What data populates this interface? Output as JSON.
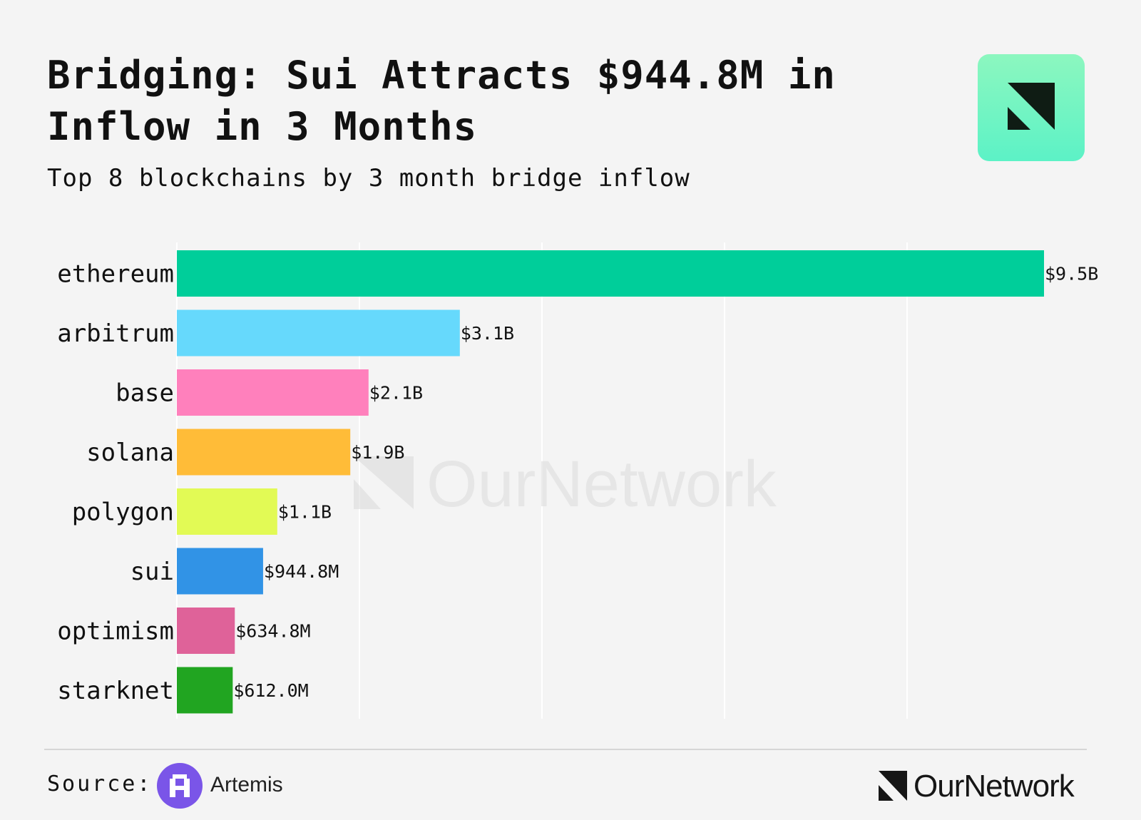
{
  "header": {
    "title": "Bridging: Sui Attracts $944.8M in Inflow in 3 Months",
    "subtitle": "Top 8 blockchains by 3 month bridge inflow",
    "logo_icon": "ournetwork-mark-icon",
    "logo_colors": [
      "#8cf7bf",
      "#5cf2c6",
      "#0f1c14"
    ]
  },
  "watermark": {
    "text": "OurNetwork",
    "icon": "ournetwork-mark-icon"
  },
  "chart_data": {
    "type": "bar",
    "orientation": "horizontal",
    "title": "Bridging: Sui Attracts $944.8M in Inflow in 3 Months",
    "subtitle": "Top 8 blockchains by 3 month bridge inflow",
    "xlabel": "",
    "ylabel": "",
    "xlim": [
      0,
      10.5
    ],
    "x_gridlines": [
      0,
      2,
      4,
      6,
      8
    ],
    "grid": "vertical",
    "legend": "none",
    "unit": "$B",
    "categories": [
      "ethereum",
      "arbitrum",
      "base",
      "solana",
      "polygon",
      "sui",
      "optimism",
      "starknet"
    ],
    "values": [
      9.5,
      3.1,
      2.1,
      1.9,
      1.1,
      0.9448,
      0.6348,
      0.612
    ],
    "data_labels": [
      "$9.5B",
      "$3.1B",
      "$2.1B",
      "$1.9B",
      "$1.1B",
      "$944.8M",
      "$634.8M",
      "$612.0M"
    ],
    "colors": [
      "#00ce9a",
      "#66d9fc",
      "#ff80bc",
      "#ffbc38",
      "#e2fa55",
      "#3193e6",
      "#df6299",
      "#21a521"
    ]
  },
  "footer": {
    "source_label": "Source:",
    "source_name": "Artemis",
    "source_icon": "artemis-logo-icon",
    "source_color": "#7a55e8",
    "brand_name": "OurNetwork",
    "brand_icon": "ournetwork-mark-icon"
  }
}
